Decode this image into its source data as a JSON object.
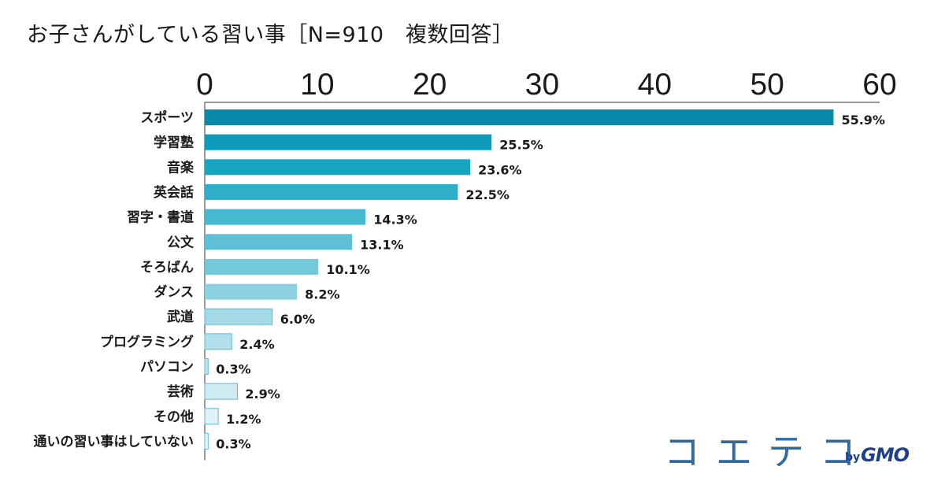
{
  "title": "お子さんがしている習い事［N=910　複数回答］",
  "logo": {
    "text": "コエテコ",
    "by": "by",
    "brand": "GMO"
  },
  "chart_data": {
    "type": "bar",
    "orientation": "horizontal",
    "xlim": [
      0,
      60
    ],
    "ticks": [
      0,
      10,
      20,
      30,
      40,
      50,
      60
    ],
    "tick_labels": [
      "0",
      "10",
      "20",
      "30",
      "40",
      "50",
      "60"
    ],
    "axis_position": "top",
    "grid": false,
    "categories": [
      "スポーツ",
      "学習塾",
      "音楽",
      "英会話",
      "習字・書道",
      "公文",
      "そろばん",
      "ダンス",
      "武道",
      "プログラミング",
      "パソコン",
      "芸術",
      "その他",
      "通いの習い事はしていない"
    ],
    "values": [
      55.9,
      25.5,
      23.6,
      22.5,
      14.3,
      13.1,
      10.1,
      8.2,
      6.0,
      2.4,
      0.3,
      2.9,
      1.2,
      0.3
    ],
    "value_labels": [
      "55.9%",
      "25.5%",
      "23.6%",
      "22.5%",
      "14.3%",
      "13.1%",
      "10.1%",
      "8.2%",
      "6.0%",
      "2.4%",
      "0.3%",
      "2.9%",
      "1.2%",
      "0.3%"
    ],
    "colors": [
      "#0a8aa9",
      "#0f9bbb",
      "#17a5c2",
      "#2eaec8",
      "#45b9d0",
      "#5dc0d5",
      "#73c8da",
      "#8dd1e0",
      "#a4dae6",
      "#b2dfe9",
      "#c0e5ed",
      "#d0ecf2",
      "#e1f3f7",
      "#eef8fb"
    ]
  }
}
